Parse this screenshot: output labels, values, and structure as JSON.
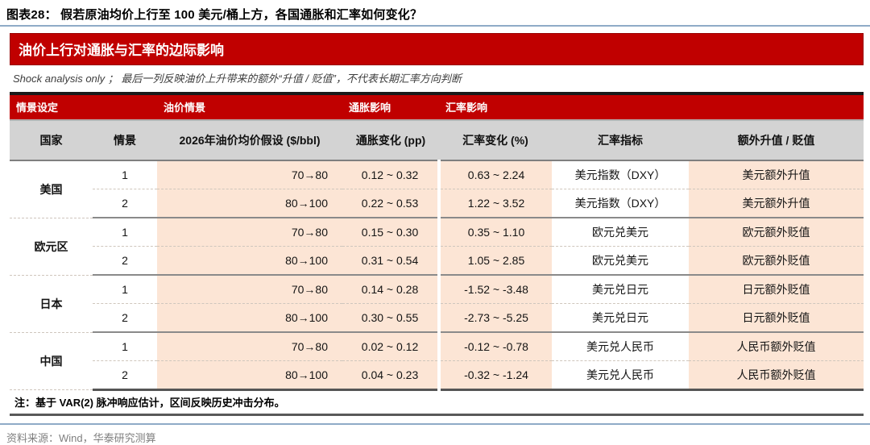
{
  "figure": {
    "title": "图表28：  假若原油均价上行至 100 美元/桶上方，各国通胀和汇率如何变化？",
    "banner": "油价上行对通胀与汇率的边际影响",
    "subtitle": "Shock analysis only ；  最后一列反映油价上升带来的额外“升值 / 贬值”，不代表长期汇率方向判断",
    "note": "注：基于 VAR(2) 脉冲响应估计，区间反映历史冲击分布。",
    "source": "资料来源：Wind，华泰研究测算"
  },
  "colors": {
    "accent_red": "#c00000",
    "cell_peach": "#fce5d5",
    "header_gray": "#d3d3d3",
    "rule_blue": "#8fabc7"
  },
  "table": {
    "group_headers": [
      "情景设定",
      "油价情景",
      "通胀影响",
      "汇率影响"
    ],
    "columns": [
      "国家",
      "情景",
      "2026年油价均价假设 ($/bbl)",
      "通胀变化 (pp)",
      "汇率变化 (%)",
      "汇率指标",
      "额外升值 / 贬值"
    ],
    "rows": [
      {
        "country": "美国",
        "scenario": "1",
        "oil": "70→80",
        "inflation": "0.12 ~ 0.32",
        "fx_change": "0.63 ~ 2.24",
        "fx_indicator": "美元指数（DXY）",
        "extra": "美元额外升值"
      },
      {
        "country": "美国",
        "scenario": "2",
        "oil": "80→100",
        "inflation": "0.22 ~ 0.53",
        "fx_change": "1.22 ~ 3.52",
        "fx_indicator": "美元指数（DXY）",
        "extra": "美元额外升值"
      },
      {
        "country": "欧元区",
        "scenario": "1",
        "oil": "70→80",
        "inflation": "0.15 ~ 0.30",
        "fx_change": "0.35 ~ 1.10",
        "fx_indicator": "欧元兑美元",
        "extra": "欧元额外贬值"
      },
      {
        "country": "欧元区",
        "scenario": "2",
        "oil": "80→100",
        "inflation": "0.31 ~ 0.54",
        "fx_change": "1.05 ~ 2.85",
        "fx_indicator": "欧元兑美元",
        "extra": "欧元额外贬值"
      },
      {
        "country": "日本",
        "scenario": "1",
        "oil": "70→80",
        "inflation": "0.14 ~ 0.28",
        "fx_change": "-1.52 ~ -3.48",
        "fx_indicator": "美元兑日元",
        "extra": "日元额外贬值"
      },
      {
        "country": "日本",
        "scenario": "2",
        "oil": "80→100",
        "inflation": "0.30 ~ 0.55",
        "fx_change": "-2.73 ~ -5.25",
        "fx_indicator": "美元兑日元",
        "extra": "日元额外贬值"
      },
      {
        "country": "中国",
        "scenario": "1",
        "oil": "70→80",
        "inflation": "0.02 ~ 0.12",
        "fx_change": "-0.12 ~ -0.78",
        "fx_indicator": "美元兑人民币",
        "extra": "人民币额外贬值"
      },
      {
        "country": "中国",
        "scenario": "2",
        "oil": "80→100",
        "inflation": "0.04 ~ 0.23",
        "fx_change": "-0.32 ~ -1.24",
        "fx_indicator": "美元兑人民币",
        "extra": "人民币额外贬值"
      }
    ]
  }
}
